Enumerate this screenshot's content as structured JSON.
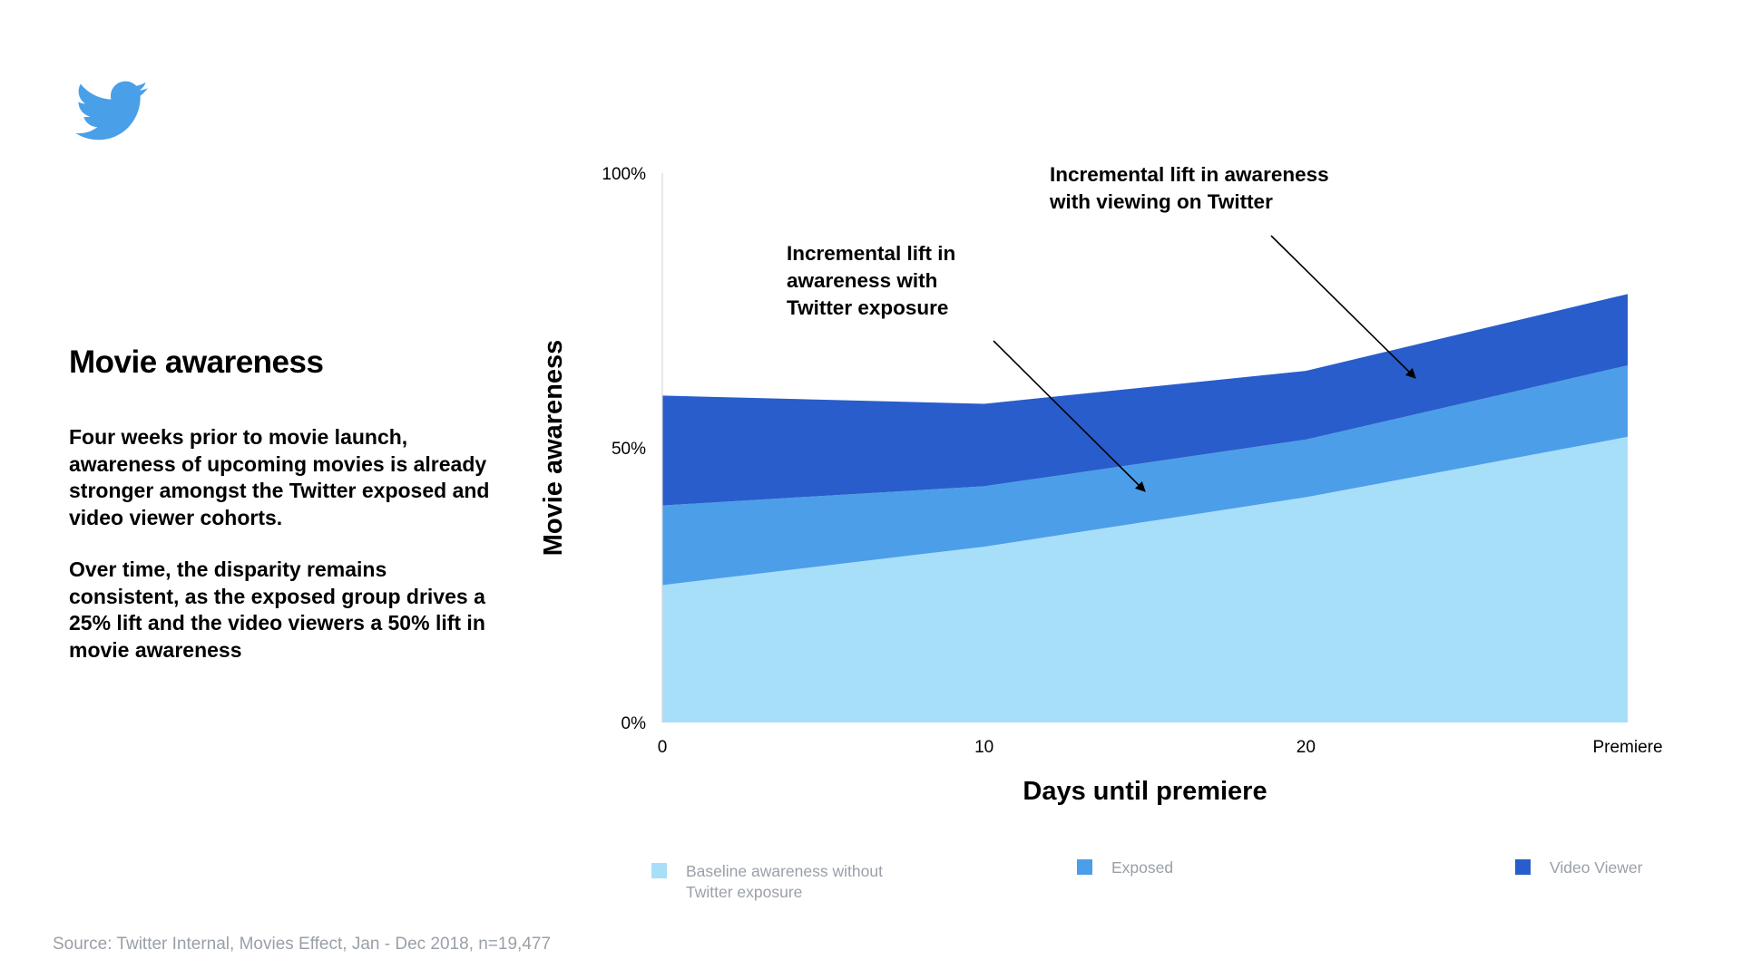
{
  "page": {
    "title": "Movie awareness",
    "paragraphs": [
      "Four weeks prior to movie launch, awareness of upcoming movies is already stronger amongst the Twitter exposed and video viewer cohorts.",
      "Over time, the disparity remains consistent, as the exposed group drives a 25% lift and the video viewers a 50% lift in movie awareness"
    ],
    "source": "Source: Twitter Internal, Movies Effect, Jan - Dec 2018, n=19,477",
    "logo_icon": "twitter-bird-icon",
    "logo_color": "#4A9FE9"
  },
  "chart_data": {
    "type": "area",
    "stacked": true,
    "title": "",
    "xlabel": "Days until premiere",
    "ylabel": "Movie awareness",
    "categories": [
      "0",
      "10",
      "20",
      "Premiere"
    ],
    "yticks": [
      "0%",
      "50%",
      "100%"
    ],
    "ylim": [
      0,
      100
    ],
    "grid": false,
    "legend_position": "bottom",
    "series": [
      {
        "name": "Baseline awareness without Twitter exposure",
        "values": [
          25,
          32,
          41,
          52
        ],
        "color": "#A7DFF9"
      },
      {
        "name": "Exposed",
        "values": [
          14.5,
          11,
          10.5,
          13
        ],
        "color": "#4D9EE8"
      },
      {
        "name": "Video Viewer",
        "values": [
          20,
          15,
          12.5,
          13
        ],
        "color": "#285DCB"
      }
    ],
    "annotations": [
      {
        "text": [
          "Incremental lift in",
          "awareness with",
          "Twitter exposure"
        ]
      },
      {
        "text": [
          "Incremental lift in awareness",
          "with viewing on Twitter"
        ]
      }
    ]
  }
}
